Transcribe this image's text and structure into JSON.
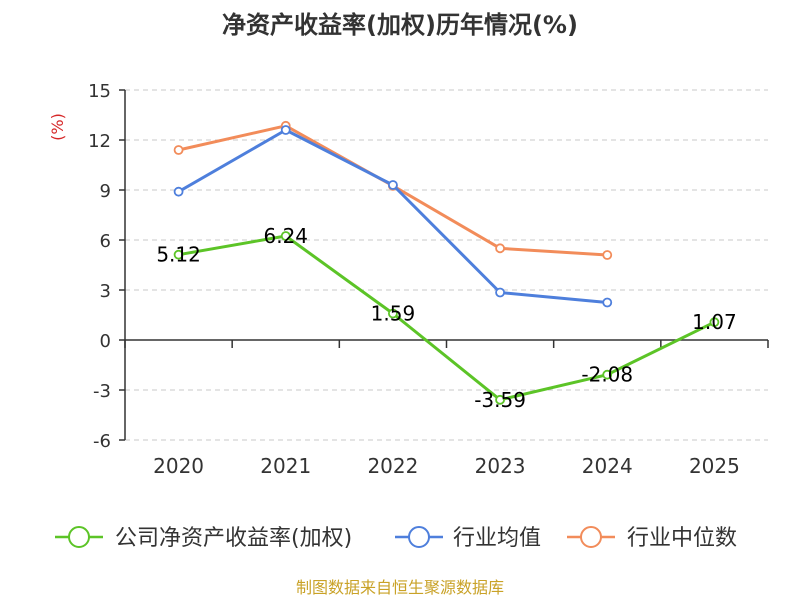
{
  "chart_data": {
    "type": "line",
    "title": "净资产收益率(加权)历年情况(%)",
    "unit_label": "(%)",
    "categories": [
      "2020",
      "2021",
      "2022",
      "2023",
      "2024",
      "2025"
    ],
    "y_ticks": [
      "15",
      "12",
      "9",
      "6",
      "3",
      "0",
      "-3",
      "-6"
    ],
    "ylim": [
      -6,
      15
    ],
    "grid": "horizontal-dashed",
    "legend_position": "bottom",
    "series": [
      {
        "name": "公司净资产收益率(加权)",
        "color": "#5cc427",
        "values": [
          5.12,
          6.24,
          1.59,
          -3.59,
          -2.08,
          1.07
        ],
        "labels": [
          "5.12",
          "6.24",
          "1.59",
          "-3.59",
          "-2.08",
          "1.07"
        ]
      },
      {
        "name": "行业均值",
        "color": "#4e7fdc",
        "values": [
          8.9,
          12.6,
          9.3,
          2.85,
          2.25,
          null
        ]
      },
      {
        "name": "行业中位数",
        "color": "#f28c5a",
        "values": [
          11.4,
          12.85,
          9.25,
          5.5,
          5.1,
          null
        ]
      }
    ]
  },
  "source": "制图数据来自恒生聚源数据库"
}
